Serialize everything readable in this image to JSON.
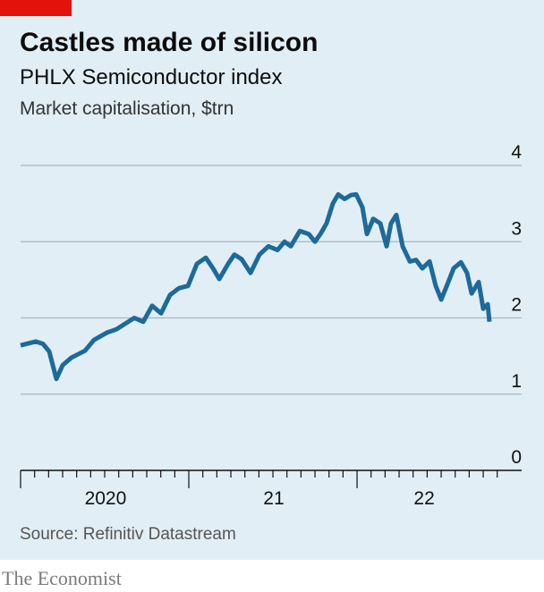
{
  "chart_data": {
    "type": "line",
    "title": "Castles made of silicon",
    "subtitle": "PHLX Semiconductor index",
    "y_label": "Market capitalisation, $trn",
    "source": "Source: Refinitiv Datastream",
    "brand": "The Economist",
    "x": [
      2020.0,
      2020.09,
      2020.133,
      2020.17,
      2020.213,
      2020.25,
      2020.303,
      2020.383,
      2020.436,
      2020.516,
      2020.569,
      2020.676,
      2020.729,
      2020.782,
      2020.835,
      2020.888,
      2020.941,
      2020.995,
      2021.048,
      2021.101,
      2021.144,
      2021.181,
      2021.234,
      2021.271,
      2021.314,
      2021.367,
      2021.42,
      2021.473,
      2021.527,
      2021.569,
      2021.606,
      2021.66,
      2021.713,
      2021.75,
      2021.782,
      2021.819,
      2021.856,
      2021.888,
      2021.926,
      2021.963,
      2021.995,
      2022.032,
      2022.059,
      2022.096,
      2022.138,
      2022.176,
      2022.202,
      2022.234,
      2022.271,
      2022.314,
      2022.351,
      2022.388,
      2022.431,
      2022.468,
      2022.5,
      2022.537,
      2022.574,
      2022.617,
      2022.654,
      2022.681,
      2022.723,
      2022.75,
      2022.777,
      2022.787
    ],
    "series": [
      {
        "name": "PHLX Semiconductor index",
        "color": "#1d6a9a",
        "values": [
          1.64,
          1.69,
          1.66,
          1.56,
          1.2,
          1.38,
          1.48,
          1.57,
          1.71,
          1.81,
          1.85,
          2.0,
          1.95,
          2.16,
          2.06,
          2.3,
          2.39,
          2.42,
          2.71,
          2.79,
          2.65,
          2.51,
          2.71,
          2.83,
          2.77,
          2.59,
          2.83,
          2.94,
          2.89,
          3.0,
          2.94,
          3.14,
          3.1,
          3.0,
          3.1,
          3.24,
          3.5,
          3.62,
          3.56,
          3.61,
          3.62,
          3.45,
          3.1,
          3.3,
          3.24,
          2.94,
          3.24,
          3.35,
          2.94,
          2.74,
          2.76,
          2.65,
          2.74,
          2.42,
          2.24,
          2.44,
          2.65,
          2.73,
          2.59,
          2.32,
          2.47,
          2.12,
          2.18,
          1.95
        ]
      }
    ],
    "xlim": [
      2020,
      2022.856
    ],
    "xticks": [
      {
        "value": 2020.505,
        "label": "2020"
      },
      {
        "value": 2021.505,
        "label": "21"
      },
      {
        "value": 2022.399,
        "label": "22"
      }
    ],
    "ylim": [
      0,
      4
    ],
    "yticks": [
      0,
      1,
      2,
      3,
      4
    ],
    "grid": true,
    "background": "#e1eef5"
  }
}
